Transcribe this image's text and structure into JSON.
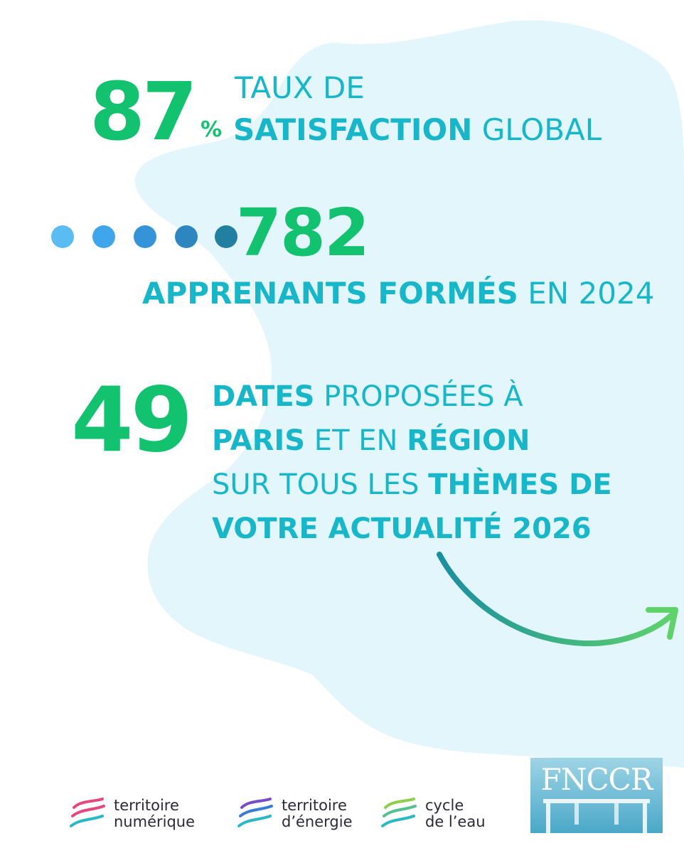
{
  "stats": {
    "satisfaction": {
      "value": "87",
      "unit": "%",
      "line1": "TAUX DE",
      "line2_bold": "SATISFACTION",
      "line2_rest": " GLOBAL"
    },
    "learners": {
      "value": "782",
      "line_bold": "APPRENANTS FORMÉS",
      "line_rest": " EN 2024",
      "dot_colors": [
        "#5bbcf3",
        "#40a6ec",
        "#3593d8",
        "#2c86c0",
        "#217fa0"
      ]
    },
    "dates": {
      "value": "49",
      "l1_bold": "DATES",
      "l1_rest": "  PROPOSÉES À",
      "l2_bold1": "PARIS",
      "l2_mid": " ET EN ",
      "l2_bold2": "RÉGION",
      "l3_rest": "SUR TOUS LES ",
      "l3_bold": "THÈMES DE",
      "l4_bold": "VOTRE ACTUALITÉ 2026"
    }
  },
  "footer": {
    "logos": [
      {
        "line1": "territoire",
        "line2": "numérique"
      },
      {
        "line1": "territoire",
        "line2": "d’énergie"
      },
      {
        "line1": "cycle",
        "line2": "de l’eau"
      }
    ],
    "brand": "FNCCR"
  },
  "colors": {
    "green": "#13c26e",
    "teal": "#17b7c9",
    "map": "#e3f6fb"
  }
}
